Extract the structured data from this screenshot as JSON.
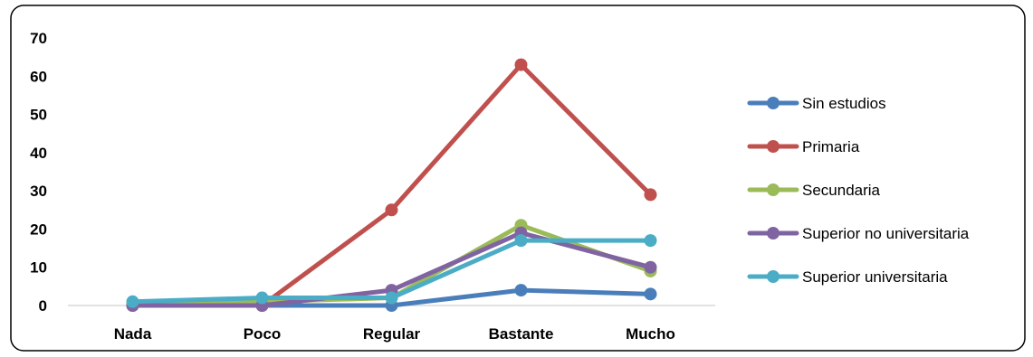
{
  "chart_data": {
    "type": "line",
    "title": "",
    "xlabel": "",
    "ylabel": "",
    "categories": [
      "Nada",
      "Poco",
      "Regular",
      "Bastante",
      "Mucho"
    ],
    "ylim": [
      0,
      70
    ],
    "yticks": [
      0,
      10,
      20,
      30,
      40,
      50,
      60,
      70
    ],
    "grid": false,
    "legend": "right",
    "series": [
      {
        "name": "Sin estudios",
        "color": "#4A7EBB",
        "values": [
          0,
          0,
          0,
          4,
          3
        ]
      },
      {
        "name": "Primaria",
        "color": "#C0504D",
        "values": [
          0,
          0,
          25,
          63,
          29
        ]
      },
      {
        "name": "Secundaria",
        "color": "#9BBB59",
        "values": [
          0,
          1,
          2,
          21,
          9
        ]
      },
      {
        "name": "Superior no universitaria",
        "color": "#8064A2",
        "values": [
          0,
          0,
          4,
          19,
          10
        ]
      },
      {
        "name": "Superior universitaria",
        "color": "#4BACC6",
        "values": [
          1,
          2,
          2,
          17,
          17
        ]
      }
    ]
  }
}
